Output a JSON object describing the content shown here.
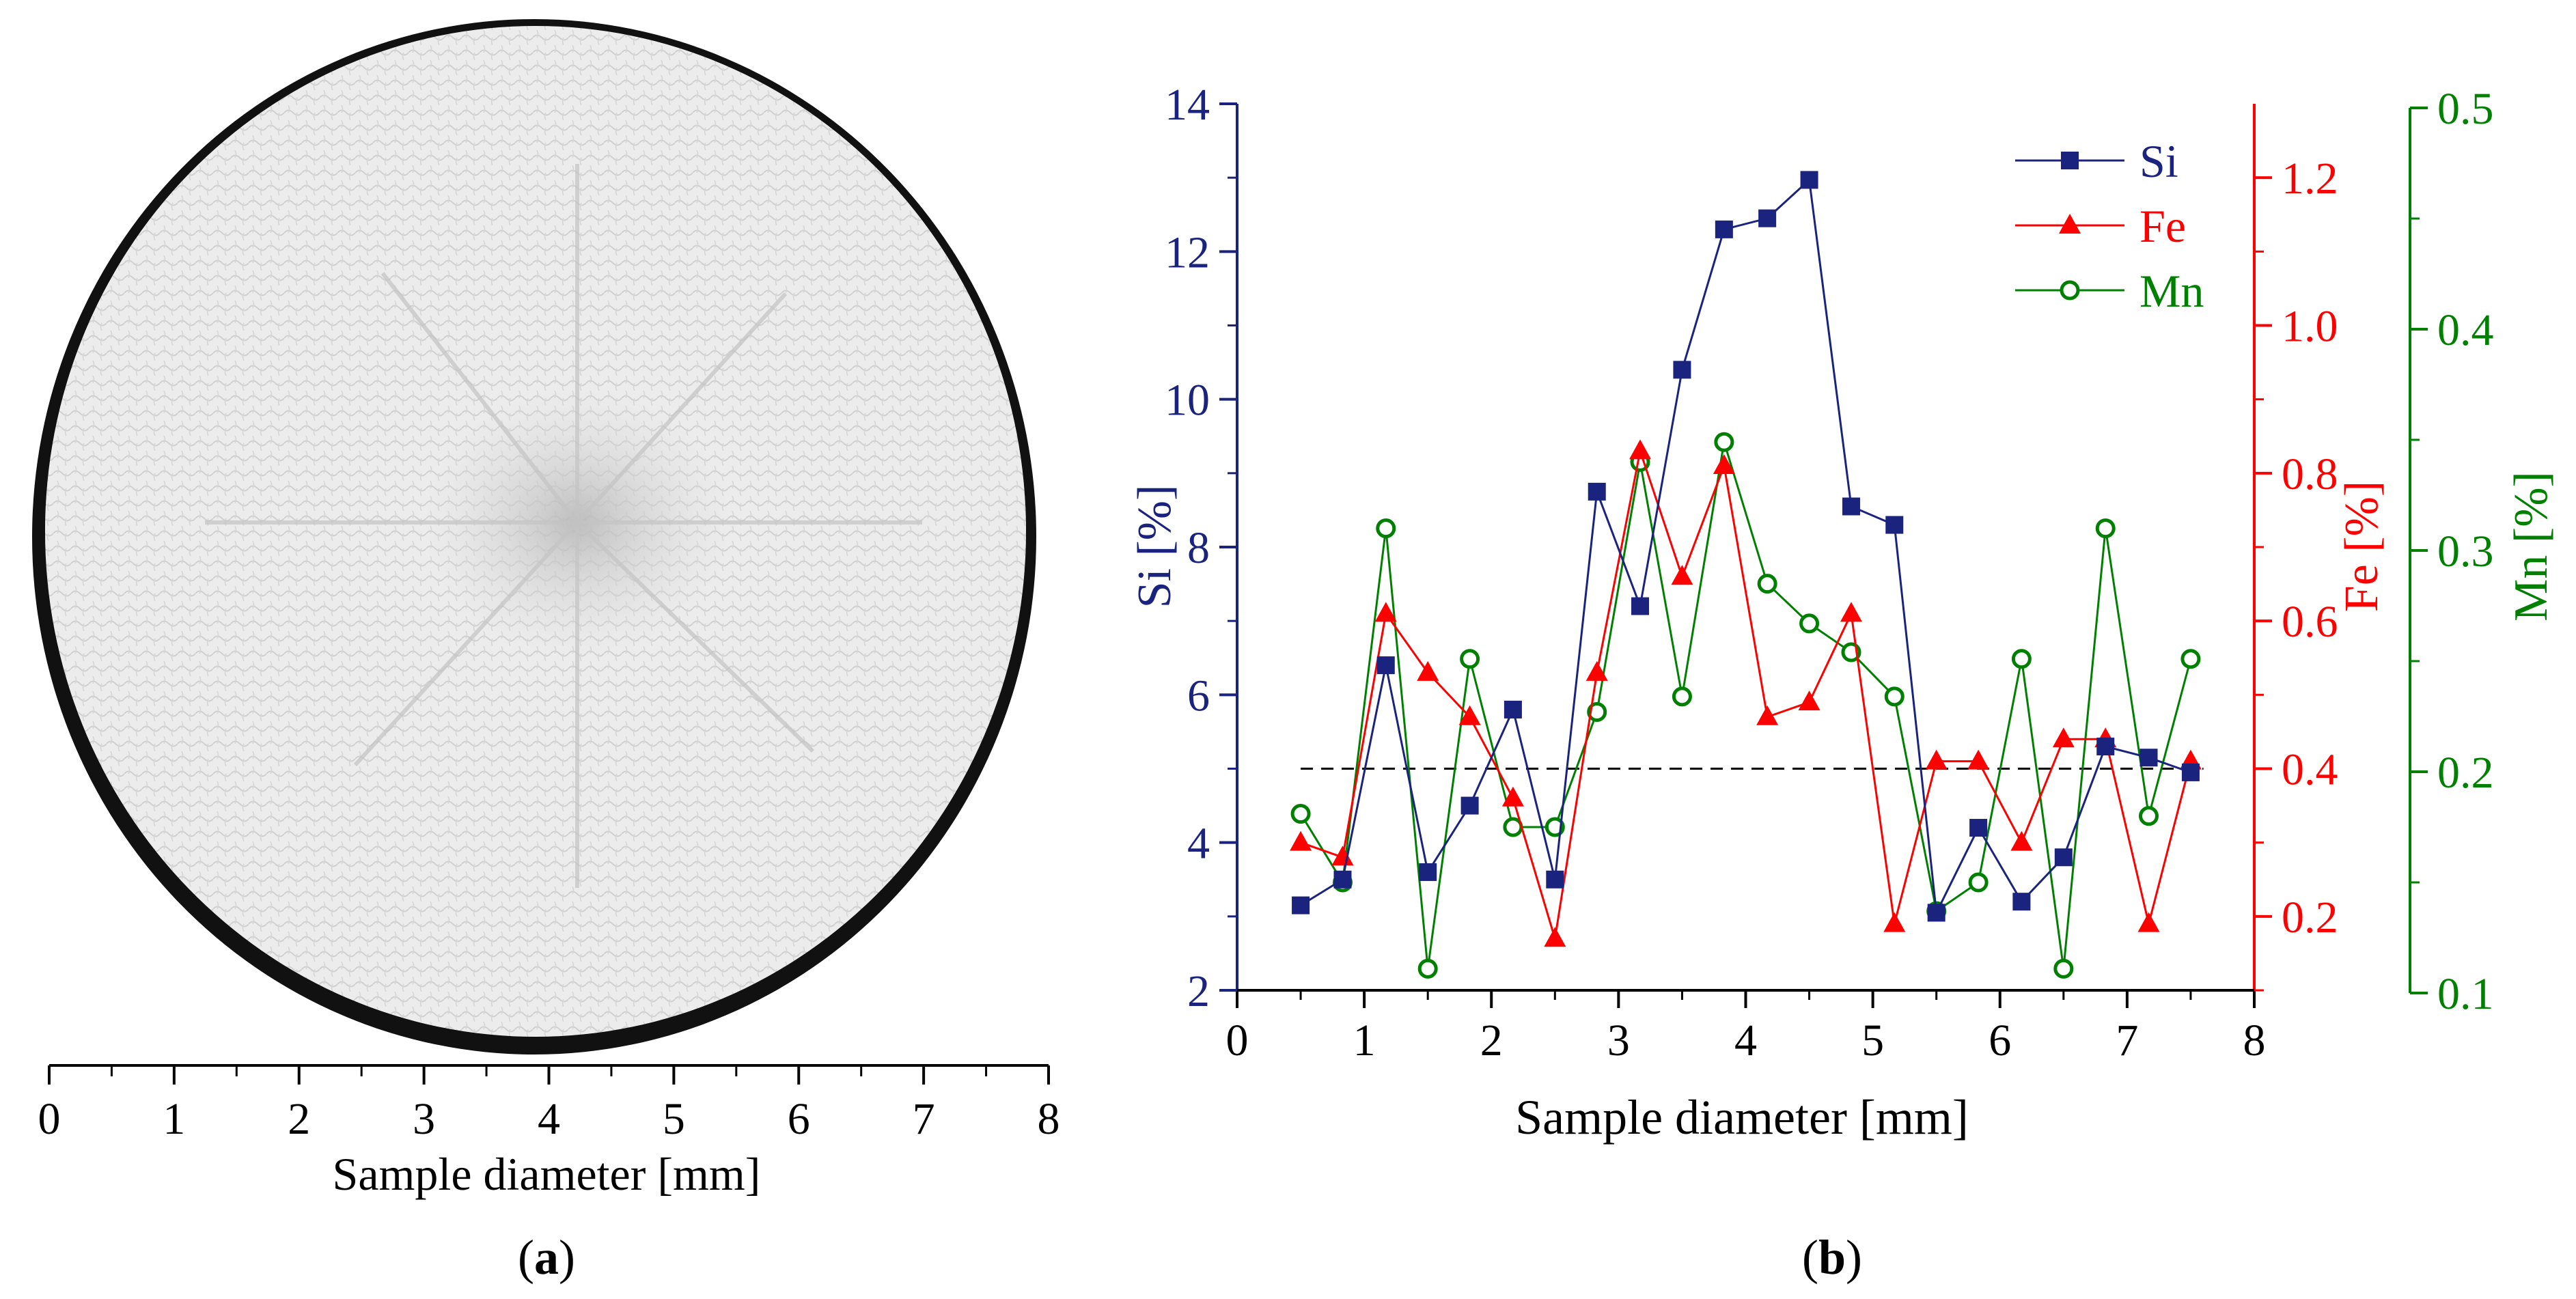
{
  "panel_a": {
    "label_open": "(",
    "label_letter": "a",
    "label_close": ")",
    "scale_ticks": [
      "0",
      "1",
      "2",
      "3",
      "4",
      "5",
      "6",
      "7",
      "8"
    ],
    "xlabel": "Sample diameter [mm]",
    "image_description": "cross-section micrograph"
  },
  "panel_b": {
    "label_open": "(",
    "label_letter": "b",
    "label_close": ")"
  },
  "colors": {
    "si": "#1a237e",
    "fe": "#ff0000",
    "mn": "#008000",
    "axis": "#000000",
    "sample_bg": "#ececec",
    "sample_rim": "#111111"
  },
  "chart_data": {
    "type": "line",
    "title": "",
    "xlabel": "Sample diameter [mm]",
    "xlim": [
      0,
      8
    ],
    "xticks": [
      "0",
      "1",
      "2",
      "3",
      "4",
      "5",
      "6",
      "7",
      "8"
    ],
    "x": [
      0.5,
      0.83,
      1.17,
      1.5,
      1.83,
      2.17,
      2.5,
      2.83,
      3.17,
      3.5,
      3.83,
      4.17,
      4.5,
      4.83,
      5.17,
      5.5,
      5.83,
      6.17,
      6.5,
      6.83,
      7.17,
      7.5
    ],
    "reference_line": {
      "axis": "Si",
      "value": 5,
      "style": "dashed",
      "x_range": [
        0.5,
        7.6
      ]
    },
    "axes": {
      "si": {
        "label": "Si [%]",
        "lim": [
          2,
          14
        ],
        "ticks": [
          "2",
          "4",
          "6",
          "8",
          "10",
          "12",
          "14"
        ]
      },
      "fe": {
        "label": "Fe [%]",
        "lim": [
          0.1,
          1.3
        ],
        "ticks": [
          "0.2",
          "0.4",
          "0.6",
          "0.8",
          "1.0",
          "1.2"
        ]
      },
      "mn": {
        "label": "Mn [%]",
        "lim": [
          0.1,
          0.5
        ],
        "ticks": [
          "0.1",
          "0.2",
          "0.3",
          "0.4",
          "0.5"
        ]
      }
    },
    "legend": {
      "placement": "top-right",
      "entries": [
        "Si",
        "Fe",
        "Mn"
      ]
    },
    "series": [
      {
        "name": "Si",
        "axis": "si",
        "marker": "square",
        "values": [
          3.15,
          3.5,
          6.4,
          3.6,
          4.5,
          5.8,
          3.5,
          8.75,
          7.2,
          10.4,
          12.3,
          12.45,
          12.97,
          8.55,
          8.3,
          3.05,
          4.2,
          3.2,
          3.8,
          5.3,
          5.15,
          4.95
        ]
      },
      {
        "name": "Fe",
        "axis": "fe",
        "marker": "triangle",
        "values": [
          0.3,
          0.28,
          0.61,
          0.53,
          0.47,
          0.36,
          0.17,
          0.53,
          0.83,
          0.66,
          0.81,
          0.47,
          0.49,
          0.61,
          0.19,
          0.41,
          0.41,
          0.3,
          0.44,
          0.44,
          0.19,
          0.41
        ]
      },
      {
        "name": "Mn",
        "axis": "mn",
        "marker": "open-circle",
        "values": [
          0.181,
          0.15,
          0.31,
          0.111,
          0.251,
          0.175,
          0.175,
          0.227,
          0.34,
          0.234,
          0.349,
          0.285,
          0.267,
          0.254,
          0.234,
          0.137,
          0.15,
          0.251,
          0.111,
          0.31,
          0.18,
          0.251
        ]
      }
    ]
  }
}
